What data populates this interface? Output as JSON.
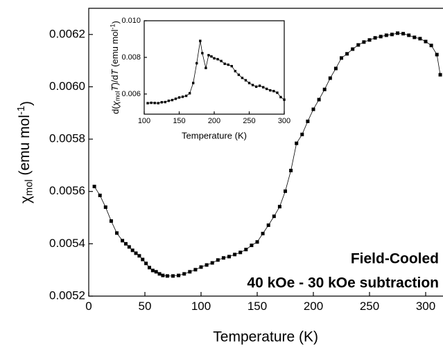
{
  "chart_data": [
    {
      "type": "line",
      "color": "#000000",
      "x_label": "Temperature (K)",
      "y_label": [
        {
          "text": "χ"
        },
        {
          "text": "mol",
          "style": "sub"
        },
        {
          "text": " (emu mol"
        },
        {
          "text": "-1",
          "style": "sup"
        },
        {
          "text": ")"
        }
      ],
      "annotations": [
        "Field-Cooled",
        "40 kOe - 30 kOe subtraction"
      ],
      "xlim": [
        0,
        315
      ],
      "xticks": [
        0,
        50,
        100,
        150,
        200,
        250,
        300
      ],
      "ylim": [
        0.0052,
        0.0063
      ],
      "yticks": [
        0.0052,
        0.0054,
        0.0056,
        0.0058,
        {
          "value": 0.006,
          "label": "0.0060"
        },
        0.0062
      ],
      "x": [
        5,
        10,
        15,
        20,
        25,
        30,
        33,
        36,
        39,
        42,
        45,
        48,
        51,
        54,
        57,
        60,
        63,
        66,
        70,
        75,
        80,
        85,
        90,
        95,
        100,
        105,
        110,
        115,
        120,
        125,
        130,
        135,
        140,
        145,
        150,
        155,
        160,
        165,
        170,
        175,
        180,
        185,
        190,
        195,
        200,
        205,
        210,
        215,
        220,
        225,
        230,
        235,
        240,
        245,
        250,
        255,
        260,
        265,
        270,
        275,
        280,
        285,
        290,
        295,
        300,
        305,
        310,
        313
      ],
      "values": [
        0.005619,
        0.005585,
        0.00554,
        0.005487,
        0.005441,
        0.005412,
        0.0054,
        0.005388,
        0.005375,
        0.005364,
        0.005354,
        0.00534,
        0.005325,
        0.005309,
        0.005298,
        0.005293,
        0.005285,
        0.005279,
        0.005277,
        0.005277,
        0.005279,
        0.005285,
        0.005293,
        0.005301,
        0.005311,
        0.005319,
        0.005327,
        0.005338,
        0.005346,
        0.005351,
        0.005359,
        0.005367,
        0.005378,
        0.005394,
        0.005407,
        0.005439,
        0.005471,
        0.005505,
        0.005542,
        0.005601,
        0.00568,
        0.005784,
        0.005818,
        0.005868,
        0.005914,
        0.005951,
        0.00599,
        0.006033,
        0.00607,
        0.00611,
        0.006126,
        0.006144,
        0.00616,
        0.006171,
        0.006179,
        0.006187,
        0.006192,
        0.006197,
        0.0062,
        0.006205,
        0.006203,
        0.006197,
        0.006189,
        0.006184,
        0.006173,
        0.006158,
        0.006123,
        0.006046
      ]
    },
    {
      "type": "line",
      "color": "#000000",
      "x_label": "Temperature (K)",
      "y_label": [
        {
          "text": "d("
        },
        {
          "text": "χ",
          "style": "italic"
        },
        {
          "text": "mol",
          "style": "sub"
        },
        {
          "text": "T",
          "style": "italic"
        },
        {
          "text": ")/d"
        },
        {
          "text": "T",
          "style": "italic"
        },
        {
          "text": " (emu mol"
        },
        {
          "text": "-1",
          "style": "sup"
        },
        {
          "text": ")"
        }
      ],
      "xlim": [
        100,
        300
      ],
      "xticks": [
        100,
        150,
        200,
        250,
        300
      ],
      "ylim": [
        0.0049,
        0.01
      ],
      "yticks": [
        0.006,
        0.008,
        {
          "value": 0.01,
          "label": "0.010"
        }
      ],
      "x": [
        105,
        110,
        115,
        120,
        125,
        130,
        135,
        140,
        145,
        150,
        155,
        160,
        165,
        170,
        175,
        180,
        183,
        188,
        192,
        196,
        200,
        205,
        210,
        215,
        220,
        225,
        230,
        235,
        240,
        245,
        250,
        255,
        260,
        265,
        270,
        275,
        280,
        285,
        290,
        295,
        300
      ],
      "values": [
        0.0055,
        0.00552,
        0.00551,
        0.0055,
        0.00555,
        0.00556,
        0.00563,
        0.00567,
        0.00574,
        0.00581,
        0.00585,
        0.0059,
        0.00604,
        0.0066,
        0.00768,
        0.0089,
        0.00823,
        0.00742,
        0.00812,
        0.00805,
        0.00795,
        0.0079,
        0.0078,
        0.00765,
        0.0076,
        0.00752,
        0.00725,
        0.00705,
        0.00688,
        0.00675,
        0.0066,
        0.00649,
        0.0064,
        0.00645,
        0.00637,
        0.00628,
        0.0062,
        0.00616,
        0.00607,
        0.00583,
        0.00569
      ]
    }
  ]
}
